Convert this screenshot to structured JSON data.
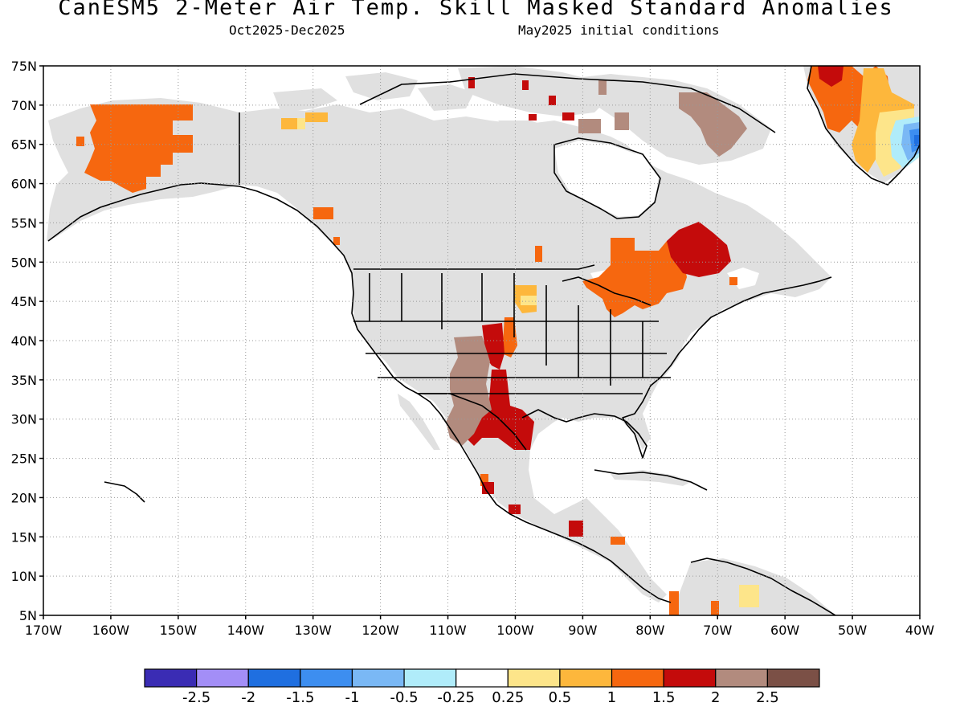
{
  "title": "CanESM5 2-Meter Air Temp. Skill Masked Standard Anomalies",
  "subtitle_left": "Oct2025-Dec2025",
  "subtitle_right": "May2025 initial conditions",
  "lat_ticks": [
    "75N",
    "70N",
    "65N",
    "60N",
    "55N",
    "50N",
    "45N",
    "40N",
    "35N",
    "30N",
    "25N",
    "20N",
    "15N",
    "10N",
    "5N"
  ],
  "lon_ticks": [
    "170W",
    "160W",
    "150W",
    "140W",
    "130W",
    "120W",
    "110W",
    "100W",
    "90W",
    "80W",
    "70W",
    "60W",
    "50W",
    "40W"
  ],
  "colorbar": {
    "colors": [
      "#3a2cb4",
      "#a38ef7",
      "#1f6fe0",
      "#3d8ef0",
      "#7ab8f5",
      "#b0ecfa",
      "#ffffff",
      "#fde58a",
      "#fdb73c",
      "#f6670f",
      "#c40b0b",
      "#b28b7e",
      "#7b5046"
    ],
    "labels": [
      "-2.5",
      "-2",
      "-1.5",
      "-1",
      "-0.5",
      "-0.25",
      "0.25",
      "0.5",
      "1",
      "1.5",
      "2",
      "2.5"
    ]
  },
  "colors": {
    "land_mask": "#e0e0e0",
    "coast": "#000000"
  }
}
